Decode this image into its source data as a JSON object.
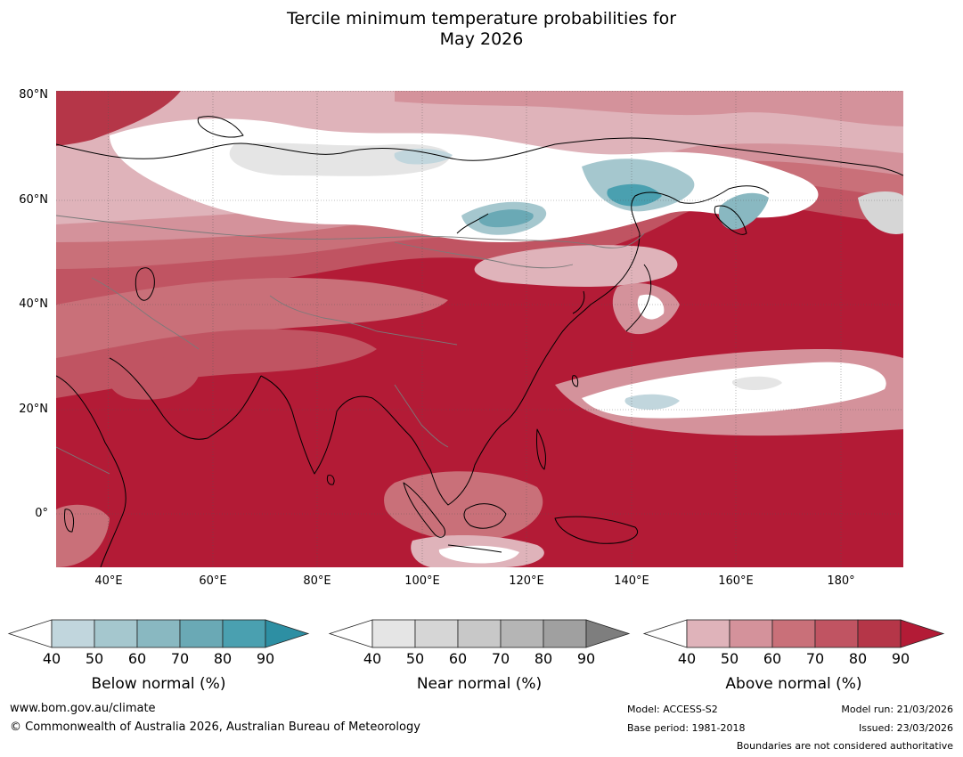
{
  "title": {
    "line1": "Tercile minimum temperature probabilities for",
    "line2": "May 2026"
  },
  "map": {
    "lat_labels": [
      "80°N",
      "60°N",
      "40°N",
      "20°N",
      "0°"
    ],
    "lon_labels": [
      "40°E",
      "60°E",
      "80°E",
      "100°E",
      "120°E",
      "140°E",
      "160°E",
      "180°"
    ],
    "lat_range": [
      -10,
      81
    ],
    "lon_range": [
      30,
      192
    ],
    "background_color": "#b31b36"
  },
  "colorbars": [
    {
      "name": "below",
      "title": "Below normal (%)",
      "ticks": [
        "40",
        "50",
        "60",
        "70",
        "80",
        "90"
      ],
      "colors": [
        "#ffffff",
        "#c1d6dd",
        "#a5c7ce",
        "#89b8c1",
        "#6aa9b5",
        "#4aa0b0",
        "#2d8fa3"
      ]
    },
    {
      "name": "near",
      "title": "Near normal (%)",
      "ticks": [
        "40",
        "50",
        "60",
        "70",
        "80",
        "90"
      ],
      "colors": [
        "#ffffff",
        "#e5e5e5",
        "#d6d6d6",
        "#c8c8c8",
        "#b5b5b5",
        "#a0a0a0",
        "#7e7e7e"
      ]
    },
    {
      "name": "above",
      "title": "Above normal (%)",
      "ticks": [
        "40",
        "50",
        "60",
        "70",
        "80",
        "90"
      ],
      "colors": [
        "#ffffff",
        "#dfb3ba",
        "#d4929b",
        "#c97079",
        "#c05462",
        "#b53648",
        "#b31b36"
      ]
    }
  ],
  "footer": {
    "website": "www.bom.gov.au/climate",
    "copyright": "© Commonwealth of Australia 2026, Australian Bureau of Meteorology",
    "model": "Model: ACCESS-S2",
    "base_period": "Base period: 1981-2018",
    "model_run": "Model run: 21/03/2026",
    "issued": "Issued: 23/03/2026",
    "disclaimer": "Boundaries are not considered authoritative"
  }
}
